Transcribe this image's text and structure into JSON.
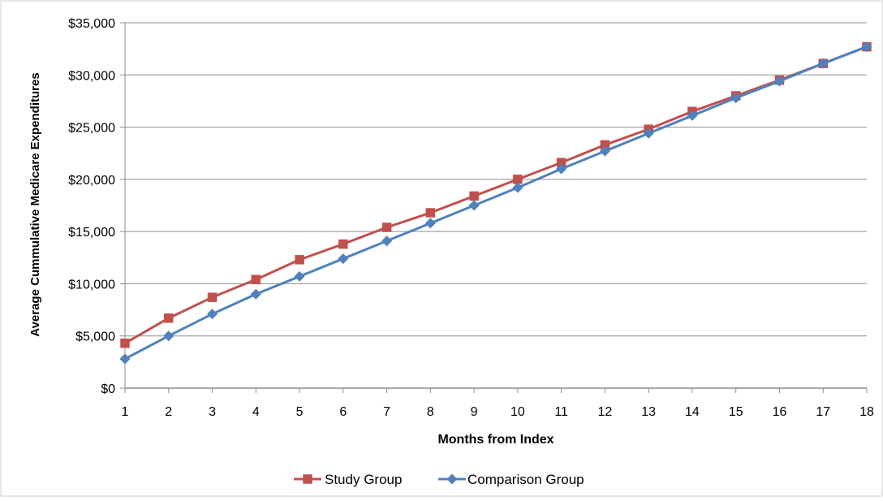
{
  "chart_data": {
    "type": "line",
    "title": "",
    "xlabel": "Months from Index",
    "ylabel": "Average Cummulative Medicare Expenditures",
    "x": [
      1,
      2,
      3,
      4,
      5,
      6,
      7,
      8,
      9,
      10,
      11,
      12,
      13,
      14,
      15,
      16,
      17,
      18
    ],
    "xticks": [
      "1",
      "2",
      "3",
      "4",
      "5",
      "6",
      "7",
      "8",
      "9",
      "10",
      "11",
      "12",
      "13",
      "14",
      "15",
      "16",
      "17",
      "18"
    ],
    "ylim": [
      0,
      35000
    ],
    "yticks": [
      {
        "value": 0,
        "label": "$0"
      },
      {
        "value": 5000,
        "label": "$5,000"
      },
      {
        "value": 10000,
        "label": "$10,000"
      },
      {
        "value": 15000,
        "label": "$15,000"
      },
      {
        "value": 20000,
        "label": "$20,000"
      },
      {
        "value": 25000,
        "label": "$25,000"
      },
      {
        "value": 30000,
        "label": "$30,000"
      },
      {
        "value": 35000,
        "label": "$35,000"
      }
    ],
    "grid": true,
    "legend_position": "bottom",
    "series": [
      {
        "name": "Study Group",
        "color": "#c0504d",
        "marker": "square",
        "values": [
          4300,
          6700,
          8700,
          10400,
          12300,
          13800,
          15400,
          16800,
          18400,
          20000,
          21600,
          23300,
          24800,
          26500,
          28000,
          29500,
          31100,
          32700
        ]
      },
      {
        "name": "Comparison Group",
        "color": "#4f81bd",
        "marker": "diamond",
        "values": [
          2800,
          5000,
          7100,
          9000,
          10700,
          12400,
          14100,
          15800,
          17500,
          19200,
          21000,
          22700,
          24400,
          26100,
          27800,
          29400,
          31100,
          32700
        ]
      }
    ]
  }
}
